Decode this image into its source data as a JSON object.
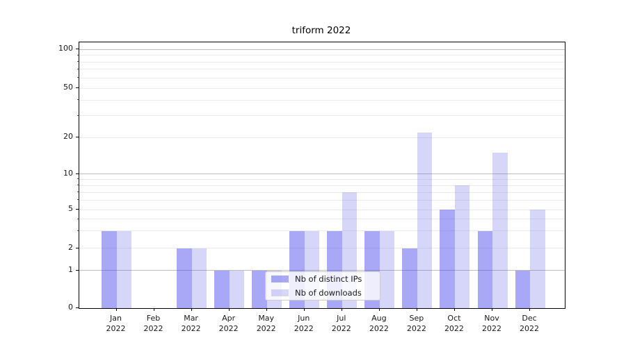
{
  "chart_data": {
    "type": "bar",
    "title": "triform 2022",
    "x_year": "2022",
    "categories": [
      "Jan",
      "Feb",
      "Mar",
      "Apr",
      "May",
      "Jun",
      "Jul",
      "Aug",
      "Sep",
      "Oct",
      "Nov",
      "Dec"
    ],
    "series": [
      {
        "name": "Nb of distinct IPs",
        "color": "#a8a8f6",
        "color_rgba": "rgba(62,62,235,0.45)",
        "values": [
          3,
          0,
          2,
          1,
          1,
          3,
          3,
          3,
          2,
          5,
          3,
          1
        ]
      },
      {
        "name": "Nb of downloads",
        "color": "#d7d7f9",
        "color_rgba": "rgba(90,90,230,0.25)",
        "values": [
          3,
          0,
          2,
          1,
          1,
          3,
          7,
          3,
          22,
          8,
          15,
          5
        ]
      }
    ],
    "yscale": "log",
    "yticks": [
      100,
      50,
      20,
      10,
      5,
      2,
      1,
      0
    ],
    "minor_yticks": [
      2,
      3,
      4,
      5,
      6,
      7,
      8,
      9,
      20,
      30,
      40,
      50,
      60,
      70,
      80,
      90
    ],
    "ylim": [
      0,
      114
    ],
    "xlabel": "",
    "ylabel": "",
    "grid": "horizontal major and minor",
    "legend_position": "inside lower center",
    "colors": {
      "major_grid": "#bdbdbd",
      "minor_grid": "#ebebeb",
      "axis": "#000000",
      "text": "#1a1a1a",
      "background": "#ffffff"
    }
  }
}
